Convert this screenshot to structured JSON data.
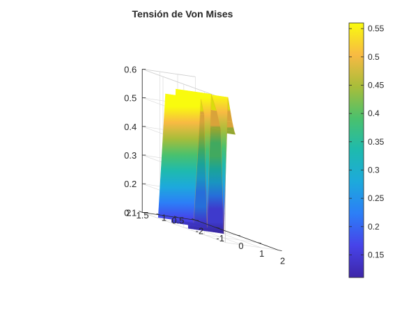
{
  "chart_data": {
    "type": "surface",
    "title": "Tensión de Von Mises",
    "xlabel": "",
    "ylabel": "",
    "zlabel": "",
    "xlim": [
      -2,
      2
    ],
    "ylim": [
      0.5,
      2
    ],
    "zlim": [
      0.1,
      0.6
    ],
    "x_ticks": [
      "-2",
      "-1",
      "0",
      "1",
      "2"
    ],
    "y_ticks": [
      "0.5",
      "1",
      "1.5",
      "2"
    ],
    "z_ticks": [
      "0.1",
      "0.2",
      "0.3",
      "0.4",
      "0.5",
      "0.6"
    ],
    "grid": true,
    "colormap": "parula",
    "colorbar": {
      "range": [
        0.11,
        0.56
      ],
      "ticks": [
        "0.15",
        "0.2",
        "0.25",
        "0.3",
        "0.35",
        "0.4",
        "0.45",
        "0.5",
        "0.55"
      ]
    },
    "profile": {
      "x": [
        -1.4,
        -1.05,
        -0.9,
        -0.75,
        -0.55,
        -0.3,
        -0.1,
        0.05,
        0.25,
        0.45,
        0.55,
        0.6
      ],
      "z": [
        0.1,
        0.54,
        0.49,
        0.1,
        0.57,
        0.52,
        0.46,
        0.1,
        0.58,
        0.5,
        0.47,
        0.46
      ]
    },
    "y_range": [
      0.9,
      1.9
    ]
  }
}
